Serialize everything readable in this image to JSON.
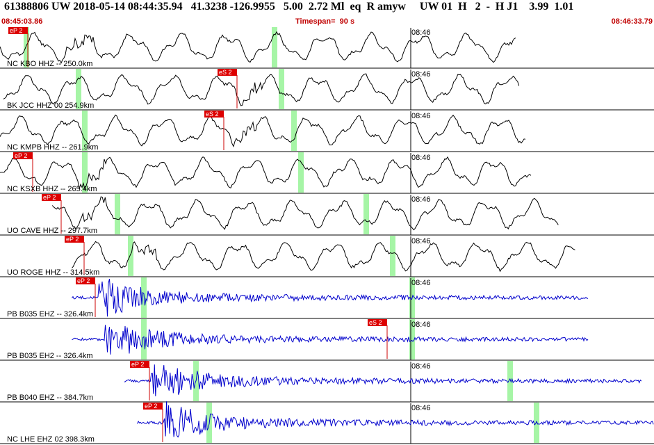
{
  "header": {
    "title": "61388806 UW 2018-05-14 08:44:35.94   41.3238 -126.9955   5.00  2.72 Ml  eq  R amyw     UW 01  H   2  -  H J1    3.99  1.01",
    "start_time": "08:45:03.86",
    "timespan": "Timespan=  90 s",
    "end_time": "08:46:33.79"
  },
  "colors": {
    "broadband_trace": "#000000",
    "short_period_trace": "#0000cc",
    "pick_box": "#dd0000",
    "pick_line": "#cc0000",
    "predicted_arrival": "#a6f5a6",
    "separator": "#000000",
    "minute_marker": "#000000"
  },
  "minute_label": "08:46",
  "traces": [
    {
      "label": "NC KBO HHZ --  250.0km",
      "kind": "broadband",
      "pick": "eP 2",
      "green": [
        0.04,
        0.42
      ]
    },
    {
      "label": "BK JCC HHZ 00  254.9km",
      "kind": "broadband",
      "pick": "eS 2",
      "green": [
        0.12,
        0.43
      ]
    },
    {
      "label": "NC KMPB HHZ --  261.9km",
      "kind": "broadband",
      "pick": "eS 2",
      "green": [
        0.13,
        0.45
      ]
    },
    {
      "label": "NC KSXB HHZ --  265.4km",
      "kind": "broadband",
      "pick": "eP 2",
      "green": [
        0.13,
        0.46
      ]
    },
    {
      "label": "UO CAVE HHZ --  297.7km",
      "kind": "broadband",
      "pick": "eP 2",
      "green": [
        0.18,
        0.56
      ]
    },
    {
      "label": "UO ROGE HHZ --  314.5km",
      "kind": "broadband",
      "pick": "eP 2",
      "green": [
        0.2,
        0.6
      ]
    },
    {
      "label": "PB B035 EHZ --  326.4km",
      "kind": "short_period",
      "pick": "eP 2",
      "green": [
        0.22,
        0.63
      ]
    },
    {
      "label": "PB B035 EH2 --  326.4km",
      "kind": "short_period",
      "pick": "eS 2",
      "green": [
        0.22,
        0.63
      ]
    },
    {
      "label": "PB B040 EHZ --  384.7km",
      "kind": "short_period",
      "pick": "eP 2",
      "green": [
        0.3,
        0.78
      ]
    },
    {
      "label": "NC LHE EHZ 02  398.3km",
      "kind": "short_period",
      "pick": "eP 2",
      "green": [
        0.32,
        0.82
      ]
    }
  ]
}
